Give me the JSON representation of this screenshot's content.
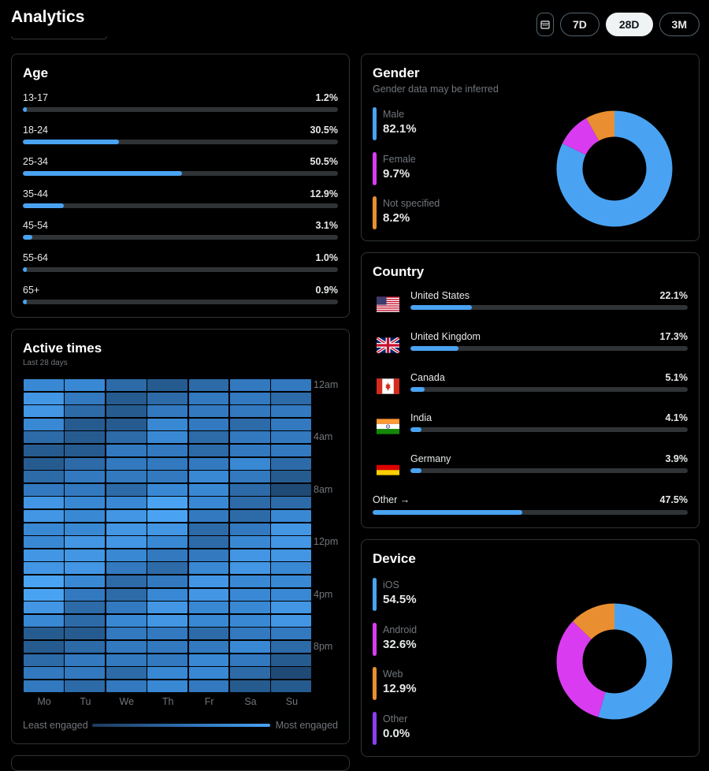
{
  "header": {
    "title": "Analytics",
    "ranges": [
      {
        "label": "7D",
        "active": false
      },
      {
        "label": "28D",
        "active": true
      },
      {
        "label": "3M",
        "active": false
      }
    ]
  },
  "age": {
    "title": "Age",
    "rows": [
      {
        "label": "13-17",
        "value": "1.2%",
        "pct": 1.2
      },
      {
        "label": "18-24",
        "value": "30.5%",
        "pct": 30.5
      },
      {
        "label": "25-34",
        "value": "50.5%",
        "pct": 50.5
      },
      {
        "label": "35-44",
        "value": "12.9%",
        "pct": 12.9
      },
      {
        "label": "45-54",
        "value": "3.1%",
        "pct": 3.1
      },
      {
        "label": "55-64",
        "value": "1.0%",
        "pct": 1.0
      },
      {
        "label": "65+",
        "value": "0.9%",
        "pct": 0.9
      }
    ]
  },
  "gender": {
    "title": "Gender",
    "subtitle": "Gender data may be inferred",
    "items": [
      {
        "label": "Male",
        "value": "82.1%",
        "pct": 82.1,
        "color": "#4aa3f2"
      },
      {
        "label": "Female",
        "value": "9.7%",
        "pct": 9.7,
        "color": "#d93cf0"
      },
      {
        "label": "Not specified",
        "value": "8.2%",
        "pct": 8.2,
        "color": "#e98f31"
      }
    ]
  },
  "country": {
    "title": "Country",
    "items": [
      {
        "name": "United States",
        "value": "22.1%",
        "pct": 22.1,
        "flag": "us-flag"
      },
      {
        "name": "United Kingdom",
        "value": "17.3%",
        "pct": 17.3,
        "flag": "uk-flag"
      },
      {
        "name": "Canada",
        "value": "5.1%",
        "pct": 5.1,
        "flag": "canada-flag"
      },
      {
        "name": "India",
        "value": "4.1%",
        "pct": 4.1,
        "flag": "india-flag"
      },
      {
        "name": "Germany",
        "value": "3.9%",
        "pct": 3.9,
        "flag": "germany-flag"
      }
    ],
    "other": {
      "label": "Other →",
      "value": "47.5%",
      "pct": 47.5
    }
  },
  "device": {
    "title": "Device",
    "items": [
      {
        "label": "iOS",
        "value": "54.5%",
        "pct": 54.5,
        "color": "#4aa3f2"
      },
      {
        "label": "Android",
        "value": "32.6%",
        "pct": 32.6,
        "color": "#d93cf0"
      },
      {
        "label": "Web",
        "value": "12.9%",
        "pct": 12.9,
        "color": "#e98f31"
      },
      {
        "label": "Other",
        "value": "0.0%",
        "pct": 0.0,
        "color": "#8b3ff0"
      }
    ]
  },
  "active": {
    "title": "Active times",
    "subtitle": "Last 28 days",
    "days": [
      "Mo",
      "Tu",
      "We",
      "Th",
      "Fr",
      "Sa",
      "Su"
    ],
    "hour_labels": [
      "12am",
      "4am",
      "8am",
      "12pm",
      "4pm",
      "8pm"
    ],
    "least": "Least engaged",
    "most": "Most engaged"
  }
}
